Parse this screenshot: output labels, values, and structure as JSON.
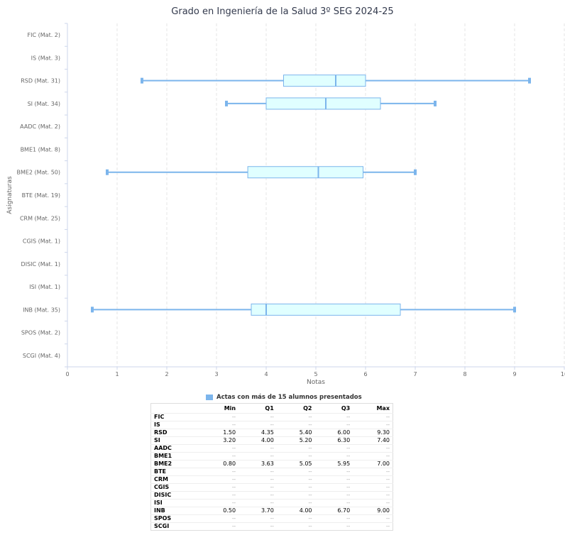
{
  "chart_data": {
    "type": "boxplot",
    "title": "Grado en Ingeniería de la Salud 3º SEG 2024-25",
    "xlabel": "Notas",
    "ylabel": "Asignaturas",
    "xlim": [
      0,
      10
    ],
    "xticks": [
      "0",
      "1",
      "2",
      "3",
      "4",
      "5",
      "6",
      "7",
      "8",
      "9",
      "10"
    ],
    "grid": "vertical dashed",
    "categories": [
      "FIC (Mat. 2)",
      "IS (Mat. 3)",
      "RSD (Mat. 31)",
      "SI (Mat. 34)",
      "AADC (Mat. 2)",
      "BME1 (Mat. 8)",
      "BME2 (Mat. 50)",
      "BTE (Mat. 19)",
      "CRM (Mat. 25)",
      "CGIS (Mat. 1)",
      "DISIC (Mat. 1)",
      "ISI (Mat. 1)",
      "INB (Mat. 35)",
      "SPOS (Mat. 2)",
      "SCGI (Mat. 4)"
    ],
    "series": [
      {
        "name": "Actas con más de 15 alumnos presentados",
        "boxes": [
          null,
          null,
          {
            "min": 1.5,
            "q1": 4.35,
            "median": 5.4,
            "q3": 6.0,
            "max": 9.3
          },
          {
            "min": 3.2,
            "q1": 4.0,
            "median": 5.2,
            "q3": 6.3,
            "max": 7.4
          },
          null,
          null,
          {
            "min": 0.8,
            "q1": 3.63,
            "median": 5.05,
            "q3": 5.95,
            "max": 7.0
          },
          null,
          null,
          null,
          null,
          null,
          {
            "min": 0.5,
            "q1": 3.7,
            "median": 4.0,
            "q3": 6.7,
            "max": 9.0
          },
          null,
          null
        ]
      }
    ],
    "legend_position": "bottom",
    "colors": {
      "box_fill": "#e0ffff",
      "box_stroke": "#7cb5ec",
      "grid": "#e6e6e6",
      "axis": "#ccd6eb"
    }
  },
  "legend": {
    "label": "Actas con más de 15 alumnos presentados"
  },
  "table": {
    "headers": [
      "",
      "Min",
      "Q1",
      "Q2",
      "Q3",
      "Max"
    ],
    "rows": [
      [
        "FIC",
        "--",
        "--",
        "--",
        "--",
        "--"
      ],
      [
        "IS",
        "--",
        "--",
        "--",
        "--",
        "--"
      ],
      [
        "RSD",
        "1.50",
        "4.35",
        "5.40",
        "6.00",
        "9.30"
      ],
      [
        "SI",
        "3.20",
        "4.00",
        "5.20",
        "6.30",
        "7.40"
      ],
      [
        "AADC",
        "--",
        "--",
        "--",
        "--",
        "--"
      ],
      [
        "BME1",
        "--",
        "--",
        "--",
        "--",
        "--"
      ],
      [
        "BME2",
        "0.80",
        "3.63",
        "5.05",
        "5.95",
        "7.00"
      ],
      [
        "BTE",
        "--",
        "--",
        "--",
        "--",
        "--"
      ],
      [
        "CRM",
        "--",
        "--",
        "--",
        "--",
        "--"
      ],
      [
        "CGIS",
        "--",
        "--",
        "--",
        "--",
        "--"
      ],
      [
        "DISIC",
        "--",
        "--",
        "--",
        "--",
        "--"
      ],
      [
        "ISI",
        "--",
        "--",
        "--",
        "--",
        "--"
      ],
      [
        "INB",
        "0.50",
        "3.70",
        "4.00",
        "6.70",
        "9.00"
      ],
      [
        "SPOS",
        "--",
        "--",
        "--",
        "--",
        "--"
      ],
      [
        "SCGI",
        "--",
        "--",
        "--",
        "--",
        "--"
      ]
    ]
  }
}
